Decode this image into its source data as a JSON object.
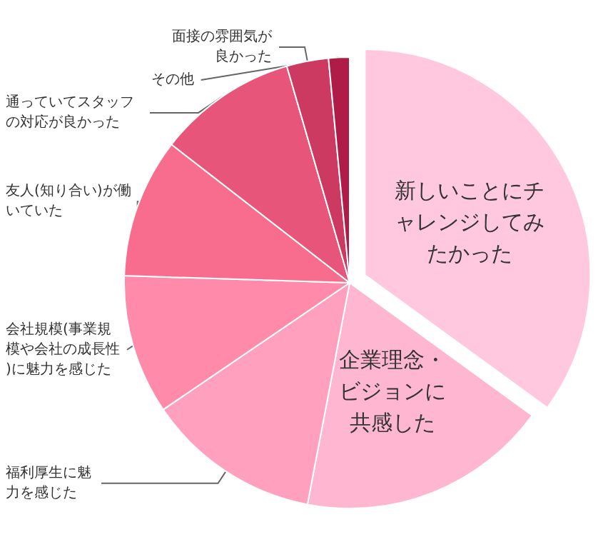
{
  "chart_data": {
    "type": "pie",
    "categories": [
      "新しいことにチャレンジしてみたかった",
      "企業理念・ビジョンに共感した",
      "福利厚生に魅力を感じた",
      "会社規模(事業規模や会社の成長性)に魅力を感じた",
      "友人(知り合い)が働いていた",
      "通っていてスタッフの対応が良かった",
      "面接の雰囲気が良かった",
      "その他"
    ],
    "values": [
      35,
      18,
      12.5,
      10,
      10,
      10,
      3,
      1.5
    ],
    "colors": [
      "#ffc8de",
      "#ffb6d0",
      "#ffa0bf",
      "#ff8aaa",
      "#f86c8e",
      "#e8557a",
      "#cc3a62",
      "#b01c48"
    ],
    "legend": false
  }
}
